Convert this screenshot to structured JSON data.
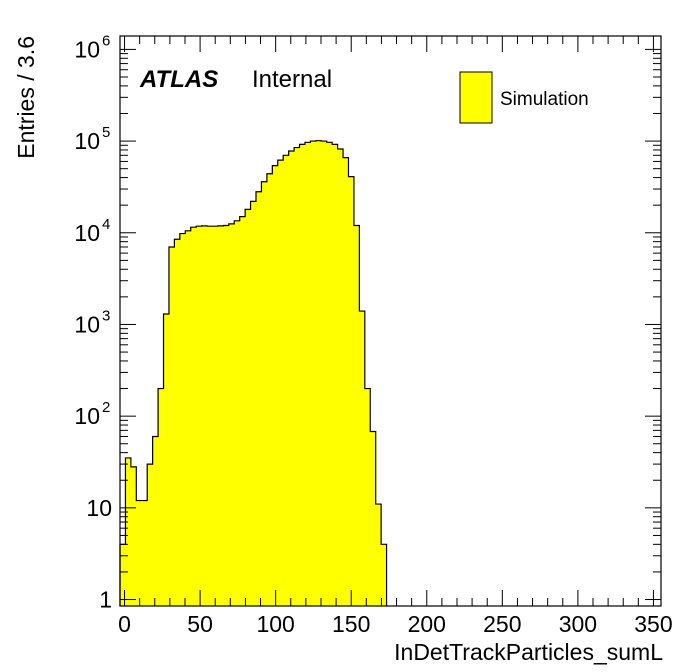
{
  "chart_data": {
    "type": "bar",
    "xlabel": "InDetTrackParticles_sumL",
    "ylabel": "Entries / 3.6",
    "xlim": [
      -3,
      355
    ],
    "ylim": [
      0.85,
      1400000
    ],
    "yscale": "log",
    "bin_width": 3.6,
    "x_start": -3.0,
    "x_ticks": [
      0,
      50,
      100,
      150,
      200,
      250,
      300,
      350
    ],
    "x_tick_labels": [
      "0",
      "50",
      "100",
      "150",
      "200",
      "250",
      "300",
      "350"
    ],
    "y_ticks": [
      {
        "value": 1,
        "base": "1",
        "exp": ""
      },
      {
        "value": 10,
        "base": "10",
        "exp": ""
      },
      {
        "value": 100,
        "base": "10",
        "exp": "2"
      },
      {
        "value": 1000,
        "base": "10",
        "exp": "3"
      },
      {
        "value": 10000,
        "base": "10",
        "exp": "4"
      },
      {
        "value": 100000,
        "base": "10",
        "exp": "5"
      },
      {
        "value": 1000000,
        "base": "10",
        "exp": "6"
      }
    ],
    "series": [
      {
        "name": "Simulation",
        "color": "#ffff00",
        "edge_color": "#000000",
        "values": [
          4,
          35,
          28,
          12,
          12,
          30,
          60,
          200,
          1300,
          7000,
          8500,
          9800,
          10500,
          11500,
          11800,
          11900,
          11800,
          11800,
          11900,
          12000,
          12500,
          13500,
          15000,
          18000,
          22000,
          28000,
          36000,
          44000,
          54000,
          62000,
          70000,
          78000,
          85000,
          92000,
          97000,
          100000,
          101000,
          100000,
          97000,
          92000,
          82000,
          66000,
          41000,
          12000,
          1400,
          200,
          68,
          11,
          4
        ]
      }
    ]
  },
  "annotations": {
    "atlas_label": "ATLAS",
    "atlas_sub": "Internal"
  },
  "legend": {
    "position": "top-right",
    "entries": [
      {
        "label": "Simulation",
        "color": "#ffff00"
      }
    ]
  }
}
